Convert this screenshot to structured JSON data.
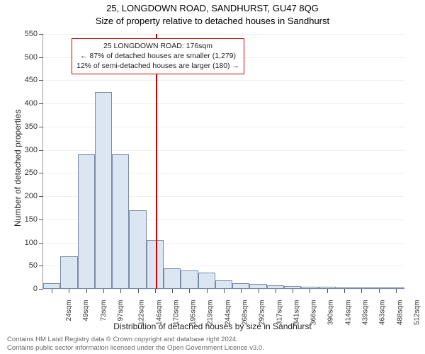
{
  "title_line1": "25, LONGDOWN ROAD, SANDHURST, GU47 8QG",
  "title_line2": "Size of property relative to detached houses in Sandhurst",
  "y_axis_label": "Number of detached properties",
  "x_axis_label": "Distribution of detached houses by size in Sandhurst",
  "footnote1": "Contains HM Land Registry data © Crown copyright and database right 2024.",
  "footnote2": "Contains public sector information licensed under the Open Government Licence v3.0.",
  "chart": {
    "type": "histogram",
    "ylim": [
      0,
      550
    ],
    "yticks": [
      0,
      50,
      100,
      150,
      200,
      250,
      300,
      350,
      400,
      450,
      500,
      550
    ],
    "xticks": [
      "24sqm",
      "49sqm",
      "73sqm",
      "97sqm",
      "122sqm",
      "146sqm",
      "170sqm",
      "195sqm",
      "219sqm",
      "244sqm",
      "268sqm",
      "292sqm",
      "317sqm",
      "341sqm",
      "366sqm",
      "390sqm",
      "414sqm",
      "439sqm",
      "463sqm",
      "488sqm",
      "512sqm"
    ],
    "bar_fill": "#dce6f2",
    "bar_stroke": "#7a8ca3",
    "grid_color": "#f0f0f0",
    "bars": [
      12,
      70,
      290,
      425,
      290,
      170,
      105,
      45,
      40,
      35,
      18,
      12,
      10,
      8,
      6,
      5,
      4,
      3,
      2,
      2,
      1
    ],
    "reference_value": 176,
    "reference_color": "#cc0000",
    "x_min": 24,
    "x_max": 512
  },
  "annotation": {
    "line1": "25 LONGDOWN ROAD: 176sqm",
    "line2": "← 87% of detached houses are smaller (1,279)",
    "line3": "12% of semi-detached houses are larger (180) →"
  }
}
